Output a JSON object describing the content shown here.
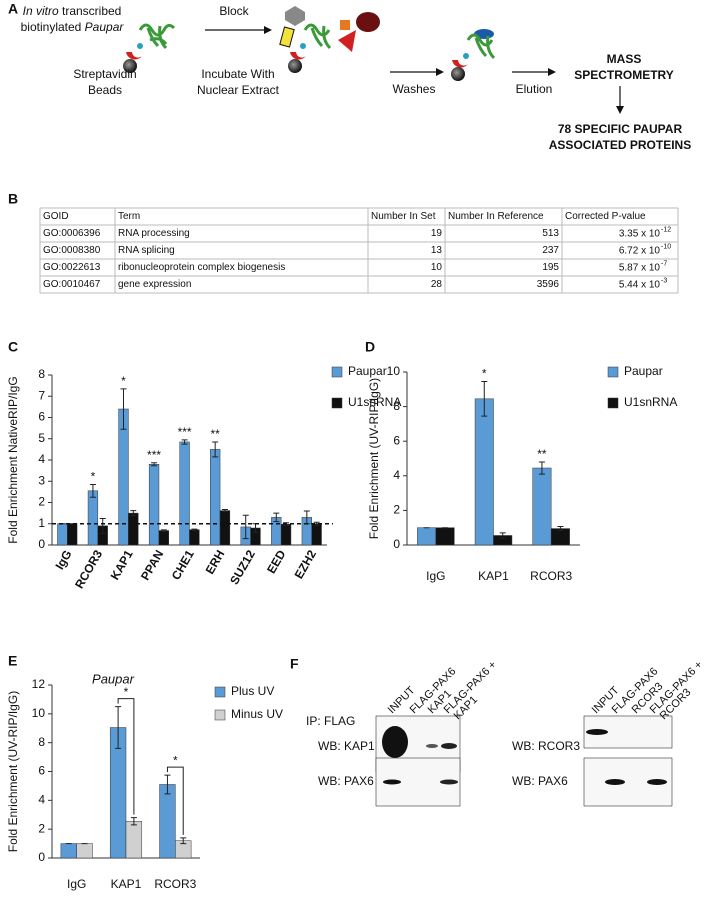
{
  "panel_a": {
    "label": "A",
    "input_line1_italic": "In vitro",
    "input_line1": " transcribed",
    "input_line2": "biotinylated ",
    "input_line2_italic": "Paupar",
    "beads": [
      "Streptavidin",
      "Beads"
    ],
    "step_block": "Block",
    "step_incubate": [
      "Incubate With",
      "Nuclear  Extract"
    ],
    "step_washes": "Washes",
    "step_elution": "Elution",
    "mass_spec": [
      "MASS",
      "SPECTROMETRY"
    ],
    "result": [
      "78 SPECIFIC PAUPAR",
      "ASSOCIATED PROTEINS"
    ]
  },
  "panel_b": {
    "label": "B",
    "table": {
      "header": [
        "GOID",
        "Term",
        "Number In Set",
        "Number In Reference",
        "Corrected P-value"
      ],
      "rows": [
        [
          "GO:0006396",
          "RNA processing",
          19,
          513,
          {
            "base": "3.35 x 10",
            "exponent": "-12"
          }
        ],
        [
          "GO:0008380",
          "RNA splicing",
          13,
          237,
          {
            "base": "6.72 x 10",
            "exponent": "-10"
          }
        ],
        [
          "GO:0022613",
          "ribonucleoprotein complex biogenesis",
          10,
          195,
          {
            "base": "5.87 x 10",
            "exponent": "-7"
          }
        ],
        [
          "GO:0010467",
          "gene expression",
          28,
          3596,
          {
            "base": "5.44 x 10",
            "exponent": "-3"
          }
        ]
      ]
    }
  },
  "chart_data": [
    {
      "type": "bar",
      "label": "C",
      "y_label": "Fold Enrichment NativeRIP/IgG",
      "categories": [
        "IgG",
        "RCOR3",
        "KAP1",
        "PPAN",
        "CHE1",
        "ERH",
        "SUZ12",
        "EED",
        "EZH2"
      ],
      "series": [
        {
          "name": "Paupar",
          "color": "#5b9bd5",
          "values": [
            1,
            2.55,
            6.4,
            3.8,
            4.85,
            4.5,
            0.85,
            1.3,
            1.3
          ],
          "errors": [
            0,
            0.3,
            0.95,
            0.07,
            0.1,
            0.35,
            0.55,
            0.2,
            0.3
          ]
        },
        {
          "name": "U1snRNA",
          "color": "#111111",
          "values": [
            1,
            0.9,
            1.5,
            0.68,
            0.72,
            1.62,
            0.8,
            0.98,
            1.0
          ],
          "errors": [
            0,
            0.35,
            0.12,
            0.03,
            0.03,
            0.05,
            0.2,
            0.07,
            0.07
          ]
        }
      ],
      "significance": [
        null,
        "*",
        "*",
        "***",
        "***",
        "**",
        null,
        null,
        null
      ],
      "reference_line": 1,
      "ylim": [
        0,
        8
      ],
      "yticks": [
        0,
        1,
        2,
        3,
        4,
        5,
        6,
        7,
        8
      ]
    },
    {
      "type": "bar",
      "label": "D",
      "y_label": "Fold Enrichment (UV-RIP/IgG)",
      "categories": [
        "IgG",
        "KAP1",
        "RCOR3"
      ],
      "series": [
        {
          "name": "Paupar",
          "color": "#5b9bd5",
          "values": [
            1,
            8.45,
            4.45
          ],
          "errors": [
            0,
            1.0,
            0.35
          ]
        },
        {
          "name": "U1snRNA",
          "color": "#111111",
          "values": [
            1,
            0.55,
            0.95
          ],
          "errors": [
            0,
            0.15,
            0.12
          ]
        }
      ],
      "significance": [
        null,
        "*",
        "**"
      ],
      "ylim": [
        0,
        10
      ],
      "yticks": [
        0,
        2,
        4,
        6,
        8,
        10
      ]
    },
    {
      "type": "bar",
      "label": "E",
      "title": "Paupar",
      "y_label": "Fold Enrichment (UV-RIP/IgG)",
      "categories": [
        "IgG",
        "KAP1",
        "RCOR3"
      ],
      "series": [
        {
          "name": "Plus UV",
          "color": "#5b9bd5",
          "values": [
            1,
            9.05,
            5.1
          ],
          "errors": [
            0,
            1.45,
            0.65
          ]
        },
        {
          "name": "Minus UV",
          "color": "#d0d0d0",
          "values": [
            1,
            2.55,
            1.2
          ],
          "errors": [
            0,
            0.25,
            0.2
          ]
        }
      ],
      "significance": [
        null,
        "*",
        "*"
      ],
      "significance_bracket": true,
      "ylim": [
        0,
        12
      ],
      "yticks": [
        0,
        2,
        4,
        6,
        8,
        10,
        12
      ]
    }
  ],
  "panel_f": {
    "label": "F",
    "ip": "IP: FLAG",
    "left_lanes": [
      "INPUT",
      "FLAG-PAX6",
      "KAP1",
      [
        "FLAG-PAX6 +",
        "KAP1"
      ]
    ],
    "right_lanes": [
      "INPUT",
      "FLAG-PAX6",
      "RCOR3",
      [
        "FLAG-PAX6 +",
        "RCOR3"
      ]
    ],
    "wb": [
      "WB: KAP1",
      "WB: PAX6",
      "WB: RCOR3",
      "WB: PAX6"
    ]
  }
}
